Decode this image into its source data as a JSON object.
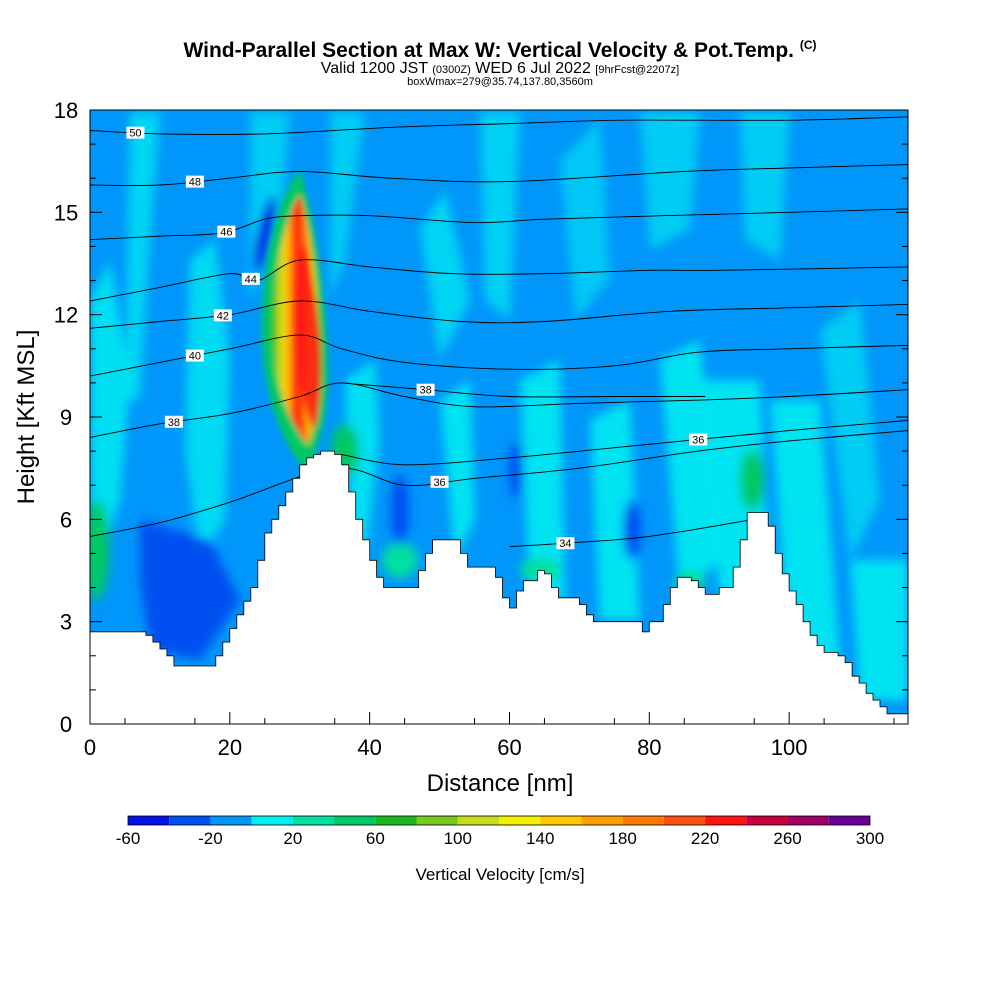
{
  "header": {
    "title": "Wind-Parallel Section at Max W: Vertical Velocity & Pot.Temp.",
    "copyright": "(C)",
    "valid_prefix": "Valid 1200 JST",
    "valid_utc": "(0300Z)",
    "valid_date": "WED 6 Jul 2022",
    "forecast": "[9hrFcst@2207z]",
    "boxinfo": "boxWmax=279@35.74,137.80,3560m"
  },
  "chart_data": {
    "type": "heatmap",
    "xlabel": "Distance [nm]",
    "ylabel": "Height [Kft MSL]",
    "xlim": [
      0,
      117
    ],
    "ylim": [
      0,
      18
    ],
    "x_ticks": [
      "0",
      "20",
      "40",
      "60",
      "80",
      "100"
    ],
    "y_ticks": [
      "0",
      "3",
      "6",
      "9",
      "12",
      "15",
      "18"
    ],
    "colorbar": {
      "label": "Vertical Velocity [cm/s]",
      "tick_labels": [
        "-60",
        "-20",
        "20",
        "60",
        "100",
        "140",
        "180",
        "220",
        "260",
        "300"
      ],
      "levels": [
        -60,
        -40,
        -20,
        0,
        20,
        40,
        60,
        80,
        100,
        120,
        140,
        160,
        180,
        200,
        220,
        240,
        260,
        280,
        300
      ],
      "colors": [
        "#0012e6",
        "#0050f0",
        "#0096fa",
        "#00f0f0",
        "#00e0a0",
        "#00c864",
        "#1eb41e",
        "#78c81e",
        "#c8dc1e",
        "#f0f000",
        "#ffc800",
        "#ffa000",
        "#ff7800",
        "#ff5014",
        "#ff1414",
        "#c8003c",
        "#a00064",
        "#640096"
      ]
    },
    "terrain_profile": [
      [
        0,
        2.7
      ],
      [
        4,
        2.7
      ],
      [
        8,
        2.6
      ],
      [
        9,
        2.4
      ],
      [
        10,
        2.2
      ],
      [
        11,
        2.0
      ],
      [
        12,
        1.7
      ],
      [
        17,
        1.7
      ],
      [
        18,
        2.0
      ],
      [
        19,
        2.4
      ],
      [
        20,
        2.8
      ],
      [
        21,
        3.2
      ],
      [
        22,
        3.6
      ],
      [
        23,
        4.0
      ],
      [
        24,
        4.8
      ],
      [
        25,
        5.6
      ],
      [
        26,
        6.0
      ],
      [
        27,
        6.4
      ],
      [
        28,
        6.8
      ],
      [
        29,
        7.2
      ],
      [
        30,
        7.6
      ],
      [
        31,
        7.8
      ],
      [
        32,
        7.9
      ],
      [
        33,
        8.0
      ],
      [
        35,
        7.9
      ],
      [
        36,
        7.6
      ],
      [
        37,
        6.8
      ],
      [
        38,
        6.0
      ],
      [
        39,
        5.4
      ],
      [
        40,
        4.8
      ],
      [
        41,
        4.3
      ],
      [
        42,
        4.0
      ],
      [
        46,
        4.0
      ],
      [
        47,
        4.5
      ],
      [
        48,
        5.0
      ],
      [
        49,
        5.4
      ],
      [
        52,
        5.4
      ],
      [
        53,
        5.0
      ],
      [
        54,
        4.6
      ],
      [
        57,
        4.6
      ],
      [
        58,
        4.3
      ],
      [
        59,
        3.7
      ],
      [
        60,
        3.4
      ],
      [
        61,
        3.9
      ],
      [
        62,
        4.2
      ],
      [
        64,
        4.5
      ],
      [
        65,
        4.4
      ],
      [
        66,
        4.0
      ],
      [
        67,
        3.7
      ],
      [
        70,
        3.5
      ],
      [
        71,
        3.2
      ],
      [
        72,
        3.0
      ],
      [
        78,
        3.0
      ],
      [
        79,
        2.7
      ],
      [
        80,
        3.0
      ],
      [
        82,
        3.5
      ],
      [
        83,
        4.0
      ],
      [
        84,
        4.3
      ],
      [
        86,
        4.2
      ],
      [
        87,
        4.0
      ],
      [
        88,
        3.8
      ],
      [
        90,
        4.0
      ],
      [
        92,
        4.6
      ],
      [
        93,
        5.4
      ],
      [
        94,
        6.2
      ],
      [
        96,
        6.2
      ],
      [
        97,
        5.8
      ],
      [
        98,
        5.0
      ],
      [
        99,
        4.4
      ],
      [
        100,
        3.9
      ],
      [
        101,
        3.5
      ],
      [
        102,
        3.0
      ],
      [
        103,
        2.6
      ],
      [
        104,
        2.3
      ],
      [
        105,
        2.1
      ],
      [
        107,
        2.0
      ],
      [
        108,
        1.8
      ],
      [
        109,
        1.4
      ],
      [
        110,
        1.2
      ],
      [
        111,
        0.9
      ],
      [
        112,
        0.7
      ],
      [
        113,
        0.5
      ],
      [
        114,
        0.3
      ],
      [
        117,
        0.3
      ]
    ],
    "theta_contours": [
      {
        "label": "34",
        "label_x": 68,
        "points": [
          [
            60,
            5.2
          ],
          [
            68,
            5.3
          ],
          [
            80,
            5.5
          ],
          [
            95,
            6.0
          ]
        ]
      },
      {
        "label": "36",
        "label_x": 50,
        "points": [
          [
            0,
            5.5
          ],
          [
            10,
            5.9
          ],
          [
            20,
            6.5
          ],
          [
            35,
            7.5
          ],
          [
            45,
            7.0
          ],
          [
            55,
            7.2
          ],
          [
            70,
            7.5
          ],
          [
            87,
            8.0
          ],
          [
            100,
            8.3
          ],
          [
            117,
            8.6
          ]
        ]
      },
      {
        "label": "36",
        "label_x": 87,
        "points": [
          [
            36,
            7.9
          ],
          [
            45,
            7.6
          ],
          [
            60,
            7.8
          ],
          [
            80,
            8.2
          ],
          [
            100,
            8.6
          ],
          [
            117,
            8.9
          ]
        ]
      },
      {
        "label": "38",
        "label_x": 12,
        "points": [
          [
            0,
            8.4
          ],
          [
            10,
            8.8
          ],
          [
            20,
            9.1
          ],
          [
            30,
            9.6
          ],
          [
            36,
            10.0
          ],
          [
            45,
            9.6
          ],
          [
            55,
            9.3
          ],
          [
            70,
            9.4
          ],
          [
            88,
            9.5
          ],
          [
            100,
            9.6
          ],
          [
            117,
            9.8
          ]
        ]
      },
      {
        "label": "38",
        "label_x": 48,
        "points": [
          [
            36,
            10.0
          ],
          [
            48,
            9.8
          ],
          [
            60,
            9.6
          ],
          [
            75,
            9.6
          ],
          [
            88,
            9.6
          ]
        ]
      },
      {
        "label": "40",
        "label_x": 15,
        "points": [
          [
            0,
            10.2
          ],
          [
            10,
            10.6
          ],
          [
            20,
            11.0
          ],
          [
            30,
            11.4
          ],
          [
            36,
            11.0
          ],
          [
            45,
            10.6
          ],
          [
            60,
            10.4
          ],
          [
            75,
            10.5
          ],
          [
            87,
            10.9
          ],
          [
            100,
            11.0
          ],
          [
            117,
            11.1
          ]
        ]
      },
      {
        "label": "42",
        "label_x": 19,
        "points": [
          [
            0,
            11.6
          ],
          [
            10,
            11.8
          ],
          [
            20,
            12.0
          ],
          [
            30,
            12.4
          ],
          [
            40,
            12.1
          ],
          [
            53,
            11.8
          ],
          [
            65,
            11.8
          ],
          [
            83,
            12.1
          ],
          [
            100,
            12.2
          ],
          [
            117,
            12.3
          ]
        ]
      },
      {
        "label": "44",
        "label_x": 23,
        "points": [
          [
            0,
            12.4
          ],
          [
            10,
            12.8
          ],
          [
            20,
            13.2
          ],
          [
            24,
            13.0
          ],
          [
            30,
            13.6
          ],
          [
            40,
            13.4
          ],
          [
            52,
            13.2
          ],
          [
            65,
            13.2
          ],
          [
            80,
            13.3
          ],
          [
            90,
            13.3
          ],
          [
            117,
            13.4
          ]
        ]
      },
      {
        "label": "46",
        "label_x": 19.5,
        "points": [
          [
            0,
            14.2
          ],
          [
            10,
            14.3
          ],
          [
            19,
            14.4
          ],
          [
            25,
            14.8
          ],
          [
            30,
            14.9
          ],
          [
            40,
            14.9
          ],
          [
            55,
            14.7
          ],
          [
            65,
            14.8
          ],
          [
            82,
            14.9
          ],
          [
            100,
            15.0
          ],
          [
            117,
            15.1
          ]
        ]
      },
      {
        "label": "48",
        "label_x": 15,
        "points": [
          [
            0,
            15.8
          ],
          [
            10,
            15.8
          ],
          [
            20,
            16.0
          ],
          [
            30,
            16.2
          ],
          [
            43,
            16.0
          ],
          [
            60,
            15.9
          ],
          [
            85,
            16.2
          ],
          [
            100,
            16.3
          ],
          [
            117,
            16.4
          ]
        ]
      },
      {
        "label": "50",
        "label_x": 6.5,
        "points": [
          [
            0,
            17.4
          ],
          [
            10,
            17.3
          ],
          [
            25,
            17.3
          ],
          [
            44,
            17.5
          ],
          [
            60,
            17.6
          ],
          [
            76,
            17.7
          ],
          [
            100,
            17.7
          ],
          [
            117,
            17.8
          ]
        ]
      }
    ]
  }
}
